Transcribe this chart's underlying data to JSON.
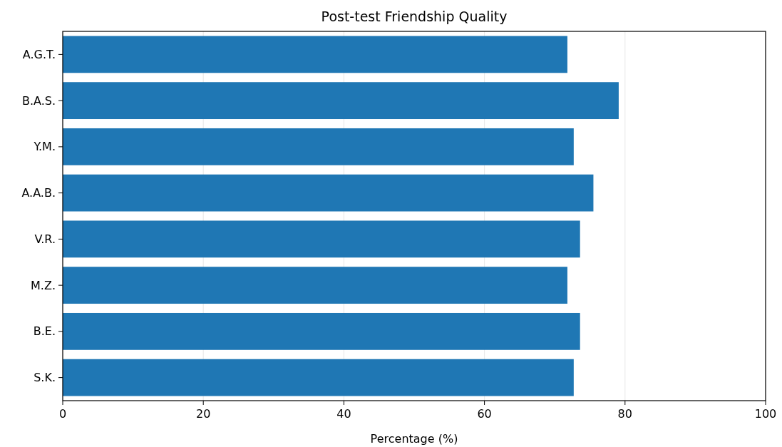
{
  "chart_data": {
    "type": "bar",
    "orientation": "horizontal",
    "title": "Post-test Friendship Quality",
    "xlabel": "Percentage (%)",
    "categories": [
      "A.G.T.",
      "B.A.S.",
      "Y.M.",
      "A.A.B.",
      "V.R.",
      "M.Z.",
      "B.E.",
      "S.K."
    ],
    "values": [
      71.8,
      79.1,
      72.7,
      75.5,
      73.6,
      71.8,
      73.6,
      72.7
    ],
    "color": "#1f77b4",
    "xlim": [
      0,
      100
    ],
    "xticks": [
      0,
      20,
      40,
      60,
      80,
      100
    ],
    "grid": "x"
  }
}
